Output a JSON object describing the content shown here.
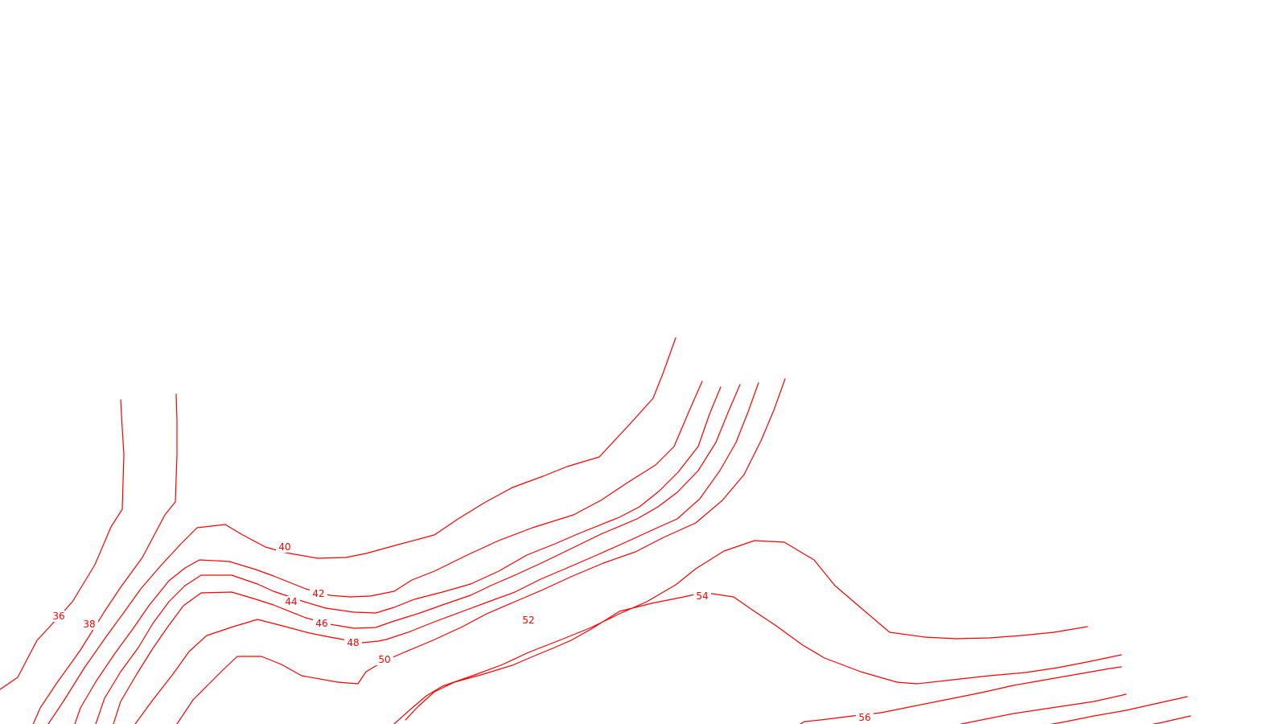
{
  "map": {
    "background_color": "#ffffff",
    "line_color": "#ff0000",
    "contour_labels": {
      "c36": "36",
      "c38": "38",
      "c40": "40",
      "c42": "42",
      "c44": "44",
      "c46": "46",
      "c48": "48",
      "c50": "50",
      "c52": "52",
      "c54": "54",
      "c56": "56"
    }
  }
}
